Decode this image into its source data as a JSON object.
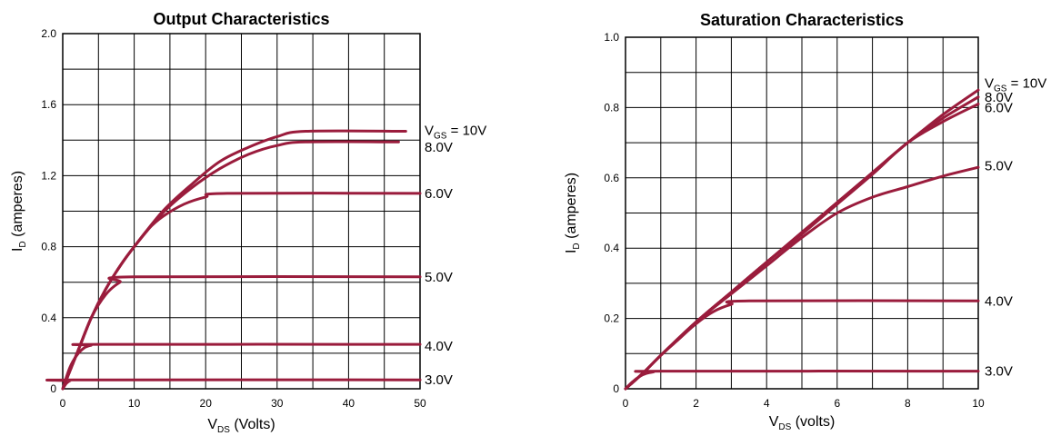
{
  "chart_data": [
    {
      "type": "line",
      "title": "Output Characteristics",
      "xlabel": {
        "main": "V",
        "sub": "DS",
        "rest": "(Volts)"
      },
      "ylabel": {
        "main": "I",
        "sub": "D",
        "rest": "(amperes)"
      },
      "xlim": [
        0,
        50
      ],
      "ylim": [
        0,
        2.0
      ],
      "x_grid_step": 5,
      "y_grid_step": 0.2,
      "x_ticks": [
        0,
        10,
        20,
        30,
        40,
        50
      ],
      "x_tick_labels": [
        "0",
        "10",
        "20",
        "30",
        "40",
        "50"
      ],
      "y_ticks": [
        0,
        0.4,
        0.8,
        1.2,
        1.6,
        2.0
      ],
      "y_tick_labels": [
        "0",
        "0.4",
        "0.8",
        "1.2",
        "1.6",
        "2.0"
      ],
      "grid": true,
      "line_color": "#9a1c3c",
      "series": [
        {
          "label": {
            "main": "V",
            "sub": "GS",
            "rest": "= 10V"
          },
          "label_y": 1.455,
          "points": [
            [
              0,
              0
            ],
            [
              2,
              0.2
            ],
            [
              4,
              0.4
            ],
            [
              6,
              0.56
            ],
            [
              8,
              0.69
            ],
            [
              10,
              0.8
            ],
            [
              14,
              1.0
            ],
            [
              18,
              1.15
            ],
            [
              22,
              1.28
            ],
            [
              26,
              1.36
            ],
            [
              30,
              1.42
            ],
            [
              34,
              1.45
            ],
            [
              48,
              1.45
            ]
          ]
        },
        {
          "label": {
            "main": "8.0V",
            "sub": "",
            "rest": ""
          },
          "label_y": 1.36,
          "points": [
            [
              0,
              0
            ],
            [
              2,
              0.2
            ],
            [
              4,
              0.4
            ],
            [
              6,
              0.56
            ],
            [
              8,
              0.69
            ],
            [
              10,
              0.8
            ],
            [
              14,
              0.99
            ],
            [
              18,
              1.13
            ],
            [
              22,
              1.24
            ],
            [
              26,
              1.32
            ],
            [
              30,
              1.37
            ],
            [
              34,
              1.39
            ],
            [
              47,
              1.39
            ]
          ]
        },
        {
          "label": {
            "main": "6.0V",
            "sub": "",
            "rest": ""
          },
          "label_y": 1.1,
          "points": [
            [
              0,
              0
            ],
            [
              2,
              0.2
            ],
            [
              4,
              0.4
            ],
            [
              6,
              0.56
            ],
            [
              8,
              0.69
            ],
            [
              10,
              0.8
            ],
            [
              12,
              0.9
            ],
            [
              14,
              0.97
            ],
            [
              17,
              1.04
            ],
            [
              20,
              1.08
            ],
            [
              23,
              1.1
            ],
            [
              50,
              1.1
            ]
          ]
        },
        {
          "label": {
            "main": "5.0V",
            "sub": "",
            "rest": ""
          },
          "label_y": 0.63,
          "points": [
            [
              0,
              0
            ],
            [
              2,
              0.2
            ],
            [
              4,
              0.4
            ],
            [
              6,
              0.53
            ],
            [
              8,
              0.6
            ],
            [
              10,
              0.63
            ],
            [
              50,
              0.63
            ]
          ]
        },
        {
          "label": {
            "main": "4.0V",
            "sub": "",
            "rest": ""
          },
          "label_y": 0.24,
          "points": [
            [
              0,
              0
            ],
            [
              1,
              0.12
            ],
            [
              2,
              0.19
            ],
            [
              3,
              0.23
            ],
            [
              4,
              0.245
            ],
            [
              5,
              0.25
            ],
            [
              50,
              0.25
            ]
          ]
        },
        {
          "label": {
            "main": "3.0V",
            "sub": "",
            "rest": ""
          },
          "label_y": 0.05,
          "points": [
            [
              0,
              0
            ],
            [
              0.5,
              0.03
            ],
            [
              1,
              0.045
            ],
            [
              1.5,
              0.05
            ],
            [
              50,
              0.05
            ]
          ]
        }
      ]
    },
    {
      "type": "line",
      "title": "Saturation Characteristics",
      "xlabel": {
        "main": "V",
        "sub": "DS",
        "rest": "(volts)"
      },
      "ylabel": {
        "main": "I",
        "sub": "D",
        "rest": "(amperes)"
      },
      "xlim": [
        0,
        10
      ],
      "ylim": [
        0,
        1.0
      ],
      "x_grid_step": 1,
      "y_grid_step": 0.1,
      "x_ticks": [
        0,
        2,
        4,
        6,
        8,
        10
      ],
      "x_tick_labels": [
        "0",
        "2",
        "4",
        "6",
        "8",
        "10"
      ],
      "y_ticks": [
        0,
        0.2,
        0.4,
        0.6,
        0.8,
        1.0
      ],
      "y_tick_labels": [
        "0",
        "0.2",
        "0.4",
        "0.6",
        "0.8",
        "1.0"
      ],
      "grid": true,
      "line_color": "#9a1c3c",
      "series": [
        {
          "label": {
            "main": "V",
            "sub": "GS",
            "rest": "= 10V"
          },
          "label_y": 0.87,
          "points": [
            [
              0,
              0
            ],
            [
              0.5,
              0.045
            ],
            [
              1,
              0.095
            ],
            [
              2,
              0.19
            ],
            [
              3,
              0.275
            ],
            [
              4,
              0.36
            ],
            [
              5,
              0.445
            ],
            [
              6,
              0.53
            ],
            [
              7,
              0.615
            ],
            [
              8,
              0.7
            ],
            [
              9,
              0.78
            ],
            [
              10,
              0.85
            ]
          ]
        },
        {
          "label": {
            "main": "8.0V",
            "sub": "",
            "rest": ""
          },
          "label_y": 0.83,
          "points": [
            [
              0,
              0
            ],
            [
              0.5,
              0.045
            ],
            [
              1,
              0.095
            ],
            [
              2,
              0.19
            ],
            [
              3,
              0.275
            ],
            [
              4,
              0.36
            ],
            [
              5,
              0.445
            ],
            [
              6,
              0.53
            ],
            [
              7,
              0.615
            ],
            [
              8,
              0.7
            ],
            [
              9,
              0.77
            ],
            [
              10,
              0.83
            ]
          ]
        },
        {
          "label": {
            "main": "6.0V",
            "sub": "",
            "rest": ""
          },
          "label_y": 0.8,
          "points": [
            [
              0,
              0
            ],
            [
              0.5,
              0.045
            ],
            [
              1,
              0.095
            ],
            [
              2,
              0.19
            ],
            [
              3,
              0.275
            ],
            [
              4,
              0.36
            ],
            [
              5,
              0.44
            ],
            [
              6,
              0.525
            ],
            [
              7,
              0.61
            ],
            [
              8,
              0.7
            ],
            [
              9,
              0.76
            ],
            [
              10,
              0.81
            ]
          ]
        },
        {
          "label": {
            "main": "5.0V",
            "sub": "",
            "rest": ""
          },
          "label_y": 0.635,
          "points": [
            [
              0,
              0
            ],
            [
              0.5,
              0.045
            ],
            [
              1,
              0.095
            ],
            [
              2,
              0.19
            ],
            [
              3,
              0.27
            ],
            [
              4,
              0.35
            ],
            [
              5,
              0.43
            ],
            [
              6,
              0.5
            ],
            [
              7,
              0.545
            ],
            [
              8,
              0.575
            ],
            [
              9,
              0.605
            ],
            [
              10,
              0.63
            ]
          ]
        },
        {
          "label": {
            "main": "4.0V",
            "sub": "",
            "rest": ""
          },
          "label_y": 0.25,
          "points": [
            [
              0,
              0
            ],
            [
              0.5,
              0.045
            ],
            [
              1,
              0.095
            ],
            [
              1.5,
              0.14
            ],
            [
              2,
              0.185
            ],
            [
              2.5,
              0.22
            ],
            [
              3,
              0.24
            ],
            [
              3.5,
              0.25
            ],
            [
              10,
              0.25
            ]
          ]
        },
        {
          "label": {
            "main": "3.0V",
            "sub": "",
            "rest": ""
          },
          "label_y": 0.05,
          "points": [
            [
              0,
              0
            ],
            [
              0.2,
              0.02
            ],
            [
              0.4,
              0.035
            ],
            [
              0.6,
              0.044
            ],
            [
              0.8,
              0.048
            ],
            [
              1,
              0.05
            ],
            [
              10,
              0.05
            ]
          ]
        }
      ]
    }
  ]
}
